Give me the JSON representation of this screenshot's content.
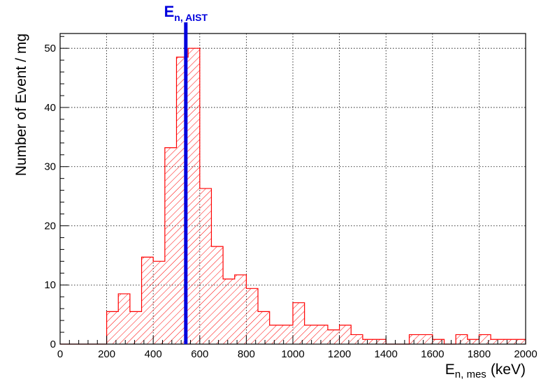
{
  "chart_data": {
    "type": "bar",
    "x": [
      0,
      50,
      100,
      150,
      200,
      250,
      300,
      350,
      400,
      450,
      500,
      550,
      600,
      650,
      700,
      750,
      800,
      850,
      900,
      950,
      1000,
      1050,
      1100,
      1150,
      1200,
      1250,
      1300,
      1350,
      1400,
      1450,
      1500,
      1550,
      1600,
      1650,
      1700,
      1750,
      1800,
      1850,
      1900,
      1950
    ],
    "bin_width": 50,
    "values": [
      0,
      0,
      0,
      0,
      5.5,
      8.5,
      5.5,
      14.7,
      14,
      33.2,
      48.5,
      50,
      26.3,
      16.5,
      11,
      11.7,
      9.4,
      5.5,
      3.2,
      3.2,
      7,
      3.2,
      3.2,
      2.4,
      3.2,
      1.6,
      0.8,
      0.8,
      0,
      0,
      1.6,
      1.6,
      0.8,
      0,
      1.6,
      0.8,
      1.6,
      0.8,
      0.8,
      0.8
    ],
    "xlim": [
      0,
      2000
    ],
    "ylim": [
      0,
      52.5
    ],
    "x_ticks": [
      0,
      200,
      400,
      600,
      800,
      1000,
      1200,
      1400,
      1600,
      1800,
      2000
    ],
    "y_ticks": [
      0,
      10,
      20,
      30,
      40,
      50
    ],
    "ylabel": "Number of Event / mg",
    "xlabel": {
      "main": "E",
      "sub": "n, mes",
      "unit": "(keV)"
    },
    "grid": true,
    "fill_style": "hatched",
    "color": "#ff0000",
    "marker": {
      "x": 540,
      "label_main": "E",
      "label_sub": "n, AIST",
      "color": "#0000dd"
    }
  }
}
